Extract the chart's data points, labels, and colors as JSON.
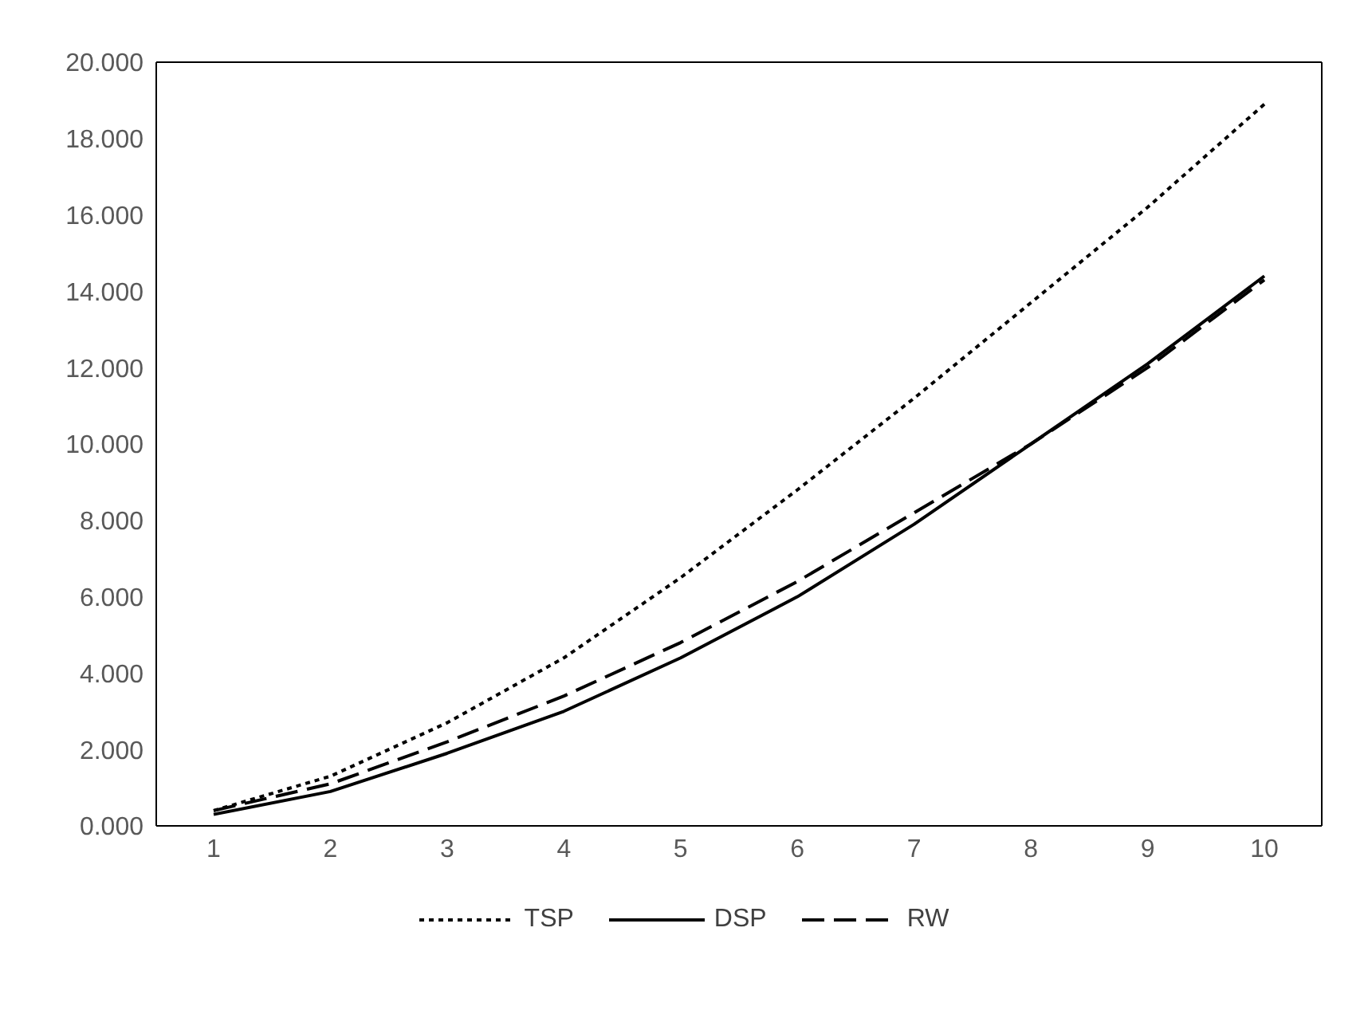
{
  "chart_data": {
    "type": "line",
    "categories": [
      "1",
      "2",
      "3",
      "4",
      "5",
      "6",
      "7",
      "8",
      "9",
      "10"
    ],
    "series": [
      {
        "name": "TSP",
        "color": "#000000",
        "line_style": "dotted",
        "values": [
          0.4,
          1.3,
          2.7,
          4.4,
          6.5,
          8.8,
          11.2,
          13.7,
          16.2,
          18.9
        ]
      },
      {
        "name": "DSP",
        "color": "#000000",
        "line_style": "solid",
        "values": [
          0.3,
          0.9,
          1.9,
          3.0,
          4.4,
          6.0,
          7.9,
          10.0,
          12.1,
          14.4
        ]
      },
      {
        "name": "RW",
        "color": "#000000",
        "line_style": "dashed",
        "values": [
          0.4,
          1.1,
          2.2,
          3.4,
          4.8,
          6.4,
          8.2,
          10.0,
          12.0,
          14.3
        ]
      }
    ],
    "ylim": [
      0,
      20
    ],
    "yticks": [
      {
        "value": 0,
        "label": "0.000"
      },
      {
        "value": 2,
        "label": "2.000"
      },
      {
        "value": 4,
        "label": "4.000"
      },
      {
        "value": 6,
        "label": "6.000"
      },
      {
        "value": 8,
        "label": "8.000"
      },
      {
        "value": 10,
        "label": "10.000"
      },
      {
        "value": 12,
        "label": "12.000"
      },
      {
        "value": 14,
        "label": "14.000"
      },
      {
        "value": 16,
        "label": "16.000"
      },
      {
        "value": 18,
        "label": "18.000"
      },
      {
        "value": 20,
        "label": "20.000"
      }
    ],
    "grid": false,
    "legend": "bottom",
    "marker": "none"
  }
}
